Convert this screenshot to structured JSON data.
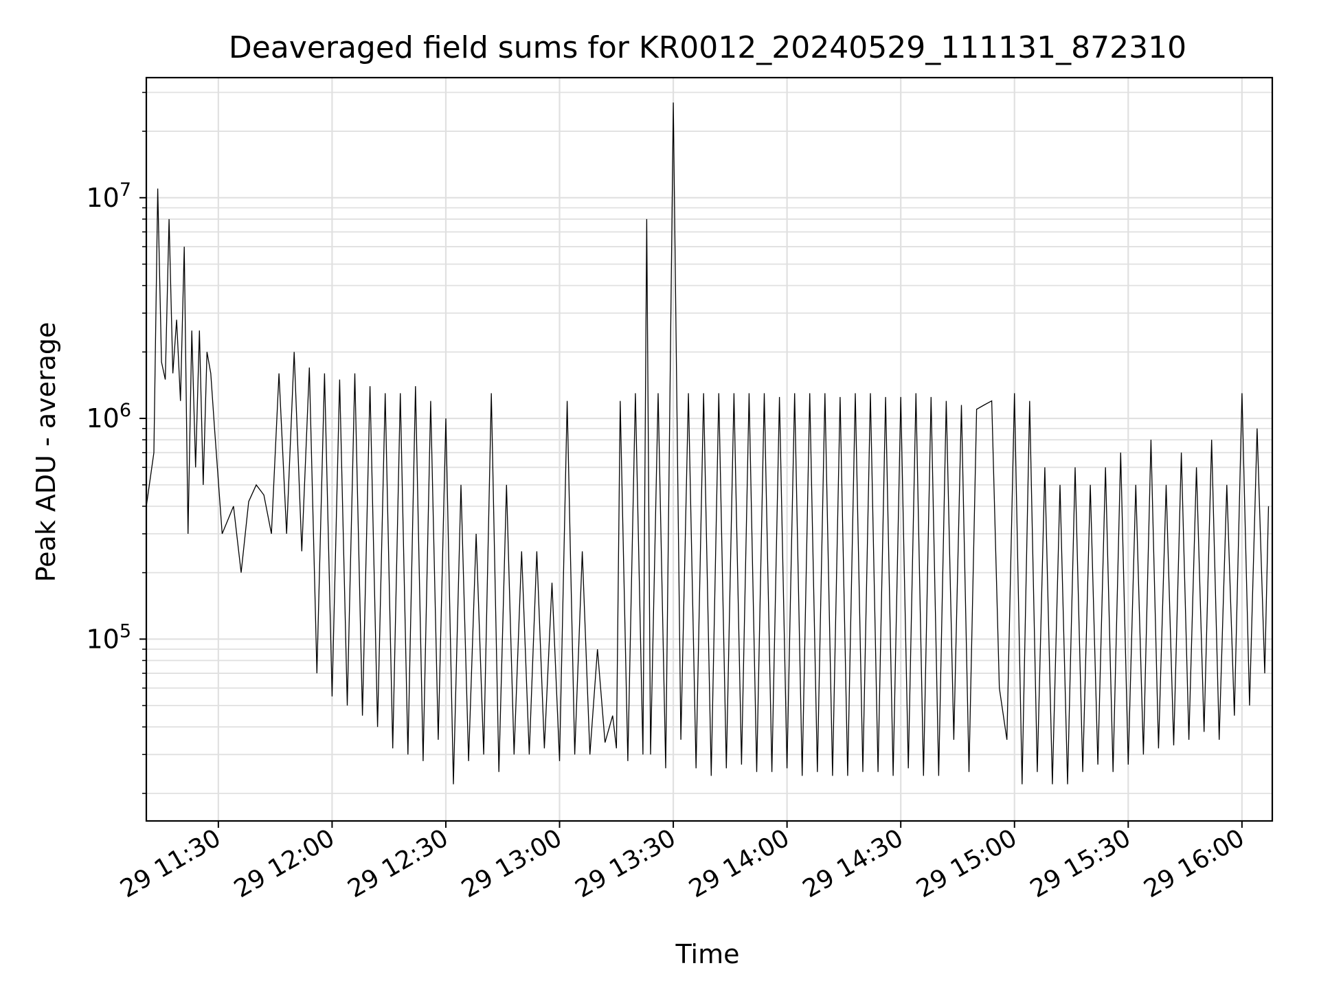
{
  "chart_data": {
    "type": "line",
    "title": "Deaveraged field sums for KR0012_20240529_111131_872310",
    "xlabel": "Time",
    "ylabel": "Peak ADU - average",
    "yscale": "log",
    "ylim": [
      15000,
      35000000
    ],
    "xlim": [
      "2024-05-29 11:11",
      "2024-05-29 16:08"
    ],
    "grid": true,
    "line_color": "#000000",
    "x_ticks": [
      "2024-05-29 11:30",
      "2024-05-29 12:00",
      "2024-05-29 12:30",
      "2024-05-29 13:00",
      "2024-05-29 13:30",
      "2024-05-29 14:00",
      "2024-05-29 14:30",
      "2024-05-29 15:00",
      "2024-05-29 15:30",
      "2024-05-29 16:00"
    ],
    "x_tick_labels": [
      "29 11:30",
      "29 12:00",
      "29 12:30",
      "29 13:00",
      "29 13:30",
      "29 14:00",
      "29 14:30",
      "29 15:00",
      "29 15:30",
      "29 16:00"
    ],
    "y_ticks": [
      100000,
      1000000,
      10000000
    ],
    "y_tick_labels": [
      {
        "base": "10",
        "exp": "5"
      },
      {
        "base": "10",
        "exp": "6"
      },
      {
        "base": "10",
        "exp": "7"
      }
    ],
    "series": [
      {
        "x": [
          "2024-05-29 11:11",
          "2024-05-29 11:13",
          "2024-05-29 11:14",
          "2024-05-29 11:15",
          "2024-05-29 11:16",
          "2024-05-29 11:17",
          "2024-05-29 11:18",
          "2024-05-29 11:19",
          "2024-05-29 11:20",
          "2024-05-29 11:21",
          "2024-05-29 11:22",
          "2024-05-29 11:23",
          "2024-05-29 11:24",
          "2024-05-29 11:25",
          "2024-05-29 11:26",
          "2024-05-29 11:27",
          "2024-05-29 11:28",
          "2024-05-29 11:29",
          "2024-05-29 11:31",
          "2024-05-29 11:34",
          "2024-05-29 11:36",
          "2024-05-29 11:38",
          "2024-05-29 11:40",
          "2024-05-29 11:42",
          "2024-05-29 11:44",
          "2024-05-29 11:46",
          "2024-05-29 11:48",
          "2024-05-29 11:50",
          "2024-05-29 11:52",
          "2024-05-29 11:54",
          "2024-05-29 11:56",
          "2024-05-29 11:58",
          "2024-05-29 12:00",
          "2024-05-29 12:02",
          "2024-05-29 12:04",
          "2024-05-29 12:06",
          "2024-05-29 12:08",
          "2024-05-29 12:10",
          "2024-05-29 12:12",
          "2024-05-29 12:14",
          "2024-05-29 12:16",
          "2024-05-29 12:18",
          "2024-05-29 12:20",
          "2024-05-29 12:22",
          "2024-05-29 12:24",
          "2024-05-29 12:26",
          "2024-05-29 12:28",
          "2024-05-29 12:30",
          "2024-05-29 12:32",
          "2024-05-29 12:34",
          "2024-05-29 12:36",
          "2024-05-29 12:38",
          "2024-05-29 12:40",
          "2024-05-29 12:42",
          "2024-05-29 12:44",
          "2024-05-29 12:46",
          "2024-05-29 12:48",
          "2024-05-29 12:50",
          "2024-05-29 12:52",
          "2024-05-29 12:54",
          "2024-05-29 12:56",
          "2024-05-29 12:58",
          "2024-05-29 13:00",
          "2024-05-29 13:02",
          "2024-05-29 13:04",
          "2024-05-29 13:06",
          "2024-05-29 13:08",
          "2024-05-29 13:10",
          "2024-05-29 13:12",
          "2024-05-29 13:14",
          "2024-05-29 13:15",
          "2024-05-29 13:16",
          "2024-05-29 13:18",
          "2024-05-29 13:20",
          "2024-05-29 13:22",
          "2024-05-29 13:23",
          "2024-05-29 13:24",
          "2024-05-29 13:26",
          "2024-05-29 13:28",
          "2024-05-29 13:30",
          "2024-05-29 13:32",
          "2024-05-29 13:34",
          "2024-05-29 13:36",
          "2024-05-29 13:38",
          "2024-05-29 13:40",
          "2024-05-29 13:42",
          "2024-05-29 13:44",
          "2024-05-29 13:46",
          "2024-05-29 13:48",
          "2024-05-29 13:50",
          "2024-05-29 13:52",
          "2024-05-29 13:54",
          "2024-05-29 13:56",
          "2024-05-29 13:58",
          "2024-05-29 14:00",
          "2024-05-29 14:02",
          "2024-05-29 14:04",
          "2024-05-29 14:06",
          "2024-05-29 14:08",
          "2024-05-29 14:10",
          "2024-05-29 14:12",
          "2024-05-29 14:14",
          "2024-05-29 14:16",
          "2024-05-29 14:18",
          "2024-05-29 14:20",
          "2024-05-29 14:22",
          "2024-05-29 14:24",
          "2024-05-29 14:26",
          "2024-05-29 14:28",
          "2024-05-29 14:30",
          "2024-05-29 14:32",
          "2024-05-29 14:34",
          "2024-05-29 14:36",
          "2024-05-29 14:38",
          "2024-05-29 14:40",
          "2024-05-29 14:42",
          "2024-05-29 14:44",
          "2024-05-29 14:46",
          "2024-05-29 14:48",
          "2024-05-29 14:50",
          "2024-05-29 14:52",
          "2024-05-29 14:54",
          "2024-05-29 14:56",
          "2024-05-29 14:58",
          "2024-05-29 15:00",
          "2024-05-29 15:02",
          "2024-05-29 15:04",
          "2024-05-29 15:06",
          "2024-05-29 15:08",
          "2024-05-29 15:10",
          "2024-05-29 15:12",
          "2024-05-29 15:14",
          "2024-05-29 15:16",
          "2024-05-29 15:18",
          "2024-05-29 15:20",
          "2024-05-29 15:22",
          "2024-05-29 15:24",
          "2024-05-29 15:26",
          "2024-05-29 15:28",
          "2024-05-29 15:30",
          "2024-05-29 15:32",
          "2024-05-29 15:34",
          "2024-05-29 15:36",
          "2024-05-29 15:38",
          "2024-05-29 15:40",
          "2024-05-29 15:42",
          "2024-05-29 15:44",
          "2024-05-29 15:46",
          "2024-05-29 15:48",
          "2024-05-29 15:50",
          "2024-05-29 15:52",
          "2024-05-29 15:54",
          "2024-05-29 15:56",
          "2024-05-29 15:58",
          "2024-05-29 16:00",
          "2024-05-29 16:02",
          "2024-05-29 16:04",
          "2024-05-29 16:06",
          "2024-05-29 16:07"
        ],
        "y": [
          400000,
          700000,
          11000000,
          1800000,
          1500000,
          8000000,
          1600000,
          2800000,
          1200000,
          6000000,
          300000,
          2500000,
          600000,
          2500000,
          500000,
          2000000,
          1600000,
          900000,
          300000,
          400000,
          200000,
          420000,
          500000,
          450000,
          300000,
          1600000,
          300000,
          2000000,
          250000,
          1700000,
          70000,
          1600000,
          55000,
          1500000,
          50000,
          1600000,
          45000,
          1400000,
          40000,
          1300000,
          32000,
          1300000,
          30000,
          1400000,
          28000,
          1200000,
          35000,
          1000000,
          22000,
          500000,
          28000,
          300000,
          30000,
          1300000,
          25000,
          500000,
          30000,
          250000,
          30000,
          250000,
          32000,
          180000,
          28000,
          1200000,
          30000,
          250000,
          30000,
          90000,
          34000,
          45000,
          32000,
          1200000,
          28000,
          1300000,
          30000,
          8000000,
          30000,
          1300000,
          26000,
          27000000,
          35000,
          1300000,
          26000,
          1300000,
          24000,
          1300000,
          26000,
          1300000,
          27000,
          1300000,
          25000,
          1300000,
          25000,
          1250000,
          26000,
          1300000,
          24000,
          1300000,
          25000,
          1300000,
          24000,
          1250000,
          24000,
          1300000,
          25000,
          1300000,
          25000,
          1250000,
          24000,
          1250000,
          26000,
          1300000,
          24000,
          1250000,
          24000,
          1200000,
          35000,
          1150000,
          25000,
          1100000,
          1150000,
          1200000,
          60000,
          35000,
          1300000,
          22000,
          1200000,
          25000,
          600000,
          22000,
          500000,
          22000,
          600000,
          25000,
          500000,
          27000,
          600000,
          25000,
          700000,
          27000,
          500000,
          30000,
          800000,
          32000,
          500000,
          33000,
          700000,
          35000,
          600000,
          38000,
          800000,
          35000,
          500000,
          45000,
          1300000,
          50000,
          900000,
          70000,
          400000
        ]
      }
    ]
  }
}
